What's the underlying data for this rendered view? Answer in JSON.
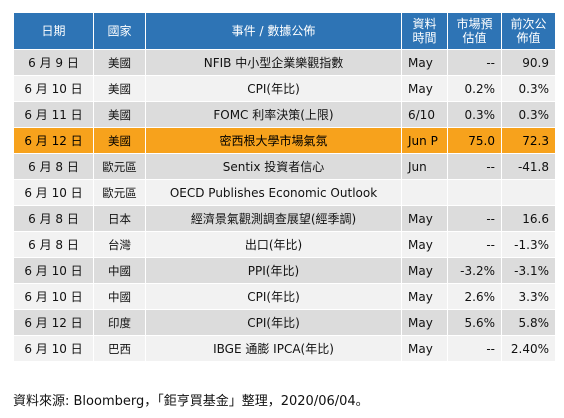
{
  "headers": {
    "date": "日期",
    "country": "國家",
    "event": "事件 / 數據公佈",
    "period": "資料時間",
    "estimate": "市場預估值",
    "previous": "前次公佈值"
  },
  "rows": [
    {
      "date": "6 月 9 日",
      "country": "美國",
      "event": "NFIB 中小型企業樂觀指數",
      "period": "May",
      "estimate": "--",
      "previous": "90.9",
      "highlight": false
    },
    {
      "date": "6 月 10 日",
      "country": "美國",
      "event": "CPI(年比)",
      "period": "May",
      "estimate": "0.2%",
      "previous": "0.3%",
      "highlight": false
    },
    {
      "date": "6 月 11 日",
      "country": "美國",
      "event": "FOMC 利率決策(上限)",
      "period": "6/10",
      "estimate": "0.3%",
      "previous": "0.3%",
      "highlight": false
    },
    {
      "date": "6 月 12 日",
      "country": "美國",
      "event": "密西根大學市場氣氛",
      "period": "Jun P",
      "estimate": "75.0",
      "previous": "72.3",
      "highlight": true
    },
    {
      "date": "6 月 8 日",
      "country": "歐元區",
      "event": "Sentix 投資者信心",
      "period": "Jun",
      "estimate": "--",
      "previous": "-41.8",
      "highlight": false
    },
    {
      "date": "6 月 10 日",
      "country": "歐元區",
      "event": "OECD Publishes Economic Outlook",
      "period": "",
      "estimate": "",
      "previous": "",
      "highlight": false
    },
    {
      "date": "6 月 8 日",
      "country": "日本",
      "event": "經濟景氣觀測調查展望(經季調)",
      "period": "May",
      "estimate": "--",
      "previous": "16.6",
      "highlight": false
    },
    {
      "date": "6 月 8 日",
      "country": "台灣",
      "event": "出口(年比)",
      "period": "May",
      "estimate": "--",
      "previous": "-1.3%",
      "highlight": false
    },
    {
      "date": "6 月 10 日",
      "country": "中國",
      "event": "PPI(年比)",
      "period": "May",
      "estimate": "-3.2%",
      "previous": "-3.1%",
      "highlight": false
    },
    {
      "date": "6 月 10 日",
      "country": "中國",
      "event": "CPI(年比)",
      "period": "May",
      "estimate": "2.6%",
      "previous": "3.3%",
      "highlight": false
    },
    {
      "date": "6 月 12 日",
      "country": "印度",
      "event": "CPI(年比)",
      "period": "May",
      "estimate": "5.6%",
      "previous": "5.8%",
      "highlight": false
    },
    {
      "date": "6 月 10 日",
      "country": "巴西",
      "event": "IBGE 通膨 IPCA(年比)",
      "period": "May",
      "estimate": "--",
      "previous": "2.40%",
      "highlight": false
    }
  ],
  "colors": {
    "header_bg": "#2e74b5",
    "row_odd": "#dcdcdc",
    "row_even": "#f2f2f2",
    "highlight": "#f7a21c"
  },
  "source_note": "資料來源: Bloomberg，「鉅亨買基金」整理，2020/06/04。"
}
